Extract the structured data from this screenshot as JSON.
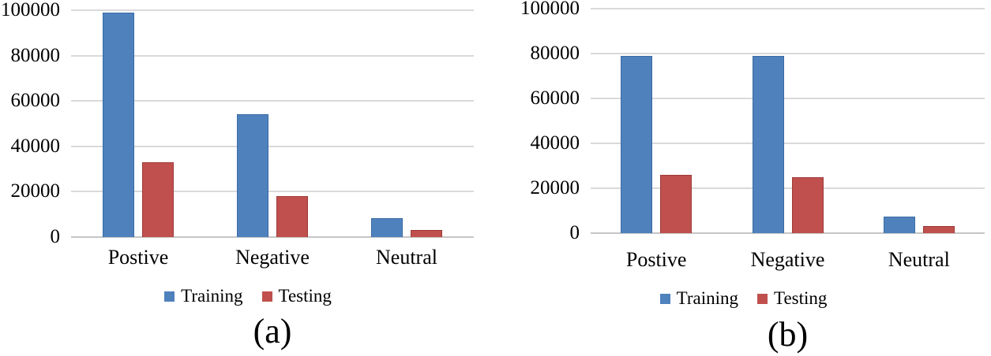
{
  "figure_type": "grouped-bar-chart-pair",
  "styles": {
    "background": "#FFFFFF",
    "grid_color": "#D9D9D9",
    "axis_line_color": "#C6C6C6",
    "text_color": "#000000",
    "training_color": "#4F81BD",
    "testing_color": "#C0504D"
  },
  "chart_data": [
    {
      "type": "bar",
      "panel": "(a)",
      "title": "",
      "xlabel": "",
      "ylabel": "",
      "categories": [
        "Postive",
        "Negative",
        "Neutral"
      ],
      "series": [
        {
          "name": "Training",
          "color": "#4F81BD",
          "border": "#3A6BA5",
          "values": [
            99000,
            54000,
            8500
          ]
        },
        {
          "name": "Testing",
          "color": "#C0504D",
          "border": "#9E3B39",
          "values": [
            33000,
            18000,
            3000
          ]
        }
      ],
      "ylim": [
        0,
        100000
      ],
      "y_ticks": [
        0,
        20000,
        40000,
        60000,
        80000,
        100000
      ],
      "grid": true,
      "legend_position": "bottom"
    },
    {
      "type": "bar",
      "panel": "(b)",
      "title": "",
      "xlabel": "",
      "ylabel": "",
      "categories": [
        "Postive",
        "Negative",
        "Neutral"
      ],
      "series": [
        {
          "name": "Training",
          "color": "#4F81BD",
          "border": "#3A6BA5",
          "values": [
            79000,
            79000,
            7500
          ]
        },
        {
          "name": "Testing",
          "color": "#C0504D",
          "border": "#9E3B39",
          "values": [
            26000,
            25000,
            3000
          ]
        }
      ],
      "ylim": [
        0,
        100000
      ],
      "y_ticks": [
        0,
        20000,
        40000,
        60000,
        80000,
        100000
      ],
      "grid": true,
      "legend_position": "bottom"
    }
  ]
}
